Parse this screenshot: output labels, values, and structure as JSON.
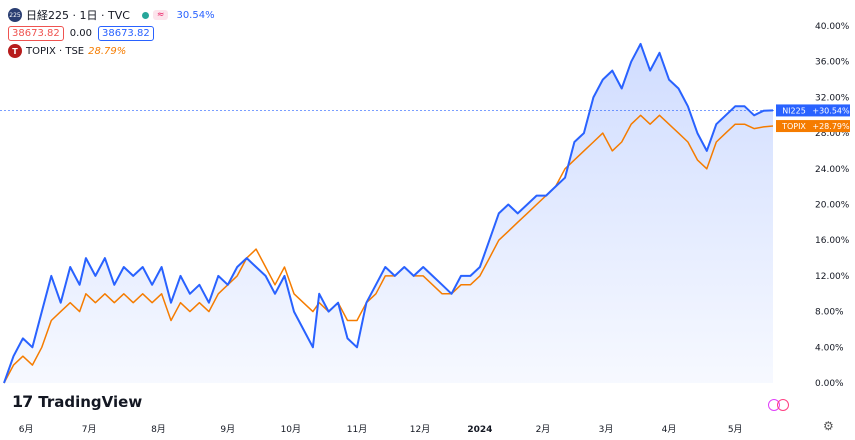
{
  "header": {
    "symbol_badge": "225",
    "symbol_title": "日経225 · 1日 · TVC",
    "wave_badge": "≈",
    "change": "30.54%",
    "price_a": "38673.82",
    "price_mid": "0.00",
    "price_b": "38673.82",
    "topix_badge": "T",
    "topix_name": "TOPIX · TSE",
    "topix_change": "28.79%"
  },
  "logo": {
    "mark": "17",
    "text": "TradingView"
  },
  "icons": {
    "settings": "gear-icon",
    "compare": "circle-icon"
  },
  "chart_data": {
    "type": "line",
    "y_unit": "%",
    "ylim": [
      0,
      40
    ],
    "y_ticks": [
      0,
      4,
      8,
      12,
      16,
      20,
      24,
      28,
      32,
      36,
      40
    ],
    "y_tick_labels": [
      "0.00%",
      "4.00%",
      "8.00%",
      "12.00%",
      "16.00%",
      "20.00%",
      "24.00%",
      "28.00%",
      "32.00%",
      "36.00%",
      "40.00%"
    ],
    "x_ticks": [
      {
        "t": 7,
        "label": "6月"
      },
      {
        "t": 27,
        "label": "7月"
      },
      {
        "t": 49,
        "label": "8月"
      },
      {
        "t": 71,
        "label": "9月"
      },
      {
        "t": 91,
        "label": "10月"
      },
      {
        "t": 112,
        "label": "11月"
      },
      {
        "t": 132,
        "label": "12月"
      },
      {
        "t": 151,
        "label": "2024"
      },
      {
        "t": 171,
        "label": "2月"
      },
      {
        "t": 191,
        "label": "3月"
      },
      {
        "t": 211,
        "label": "4月"
      },
      {
        "t": 232,
        "label": "5月"
      }
    ],
    "x_range": [
      0,
      244
    ],
    "grid": false,
    "series": [
      {
        "name": "NI225",
        "color": "#2962ff",
        "last_label": "+30.54%",
        "points": [
          [
            0,
            0
          ],
          [
            3,
            3
          ],
          [
            6,
            5
          ],
          [
            9,
            4
          ],
          [
            12,
            8
          ],
          [
            15,
            12
          ],
          [
            18,
            9
          ],
          [
            21,
            13
          ],
          [
            24,
            11
          ],
          [
            26,
            14
          ],
          [
            29,
            12
          ],
          [
            32,
            14
          ],
          [
            35,
            11
          ],
          [
            38,
            13
          ],
          [
            41,
            12
          ],
          [
            44,
            13
          ],
          [
            47,
            11
          ],
          [
            50,
            13
          ],
          [
            53,
            9
          ],
          [
            56,
            12
          ],
          [
            59,
            10
          ],
          [
            62,
            11
          ],
          [
            65,
            9
          ],
          [
            68,
            12
          ],
          [
            71,
            11
          ],
          [
            74,
            13
          ],
          [
            77,
            14
          ],
          [
            80,
            13
          ],
          [
            83,
            12
          ],
          [
            86,
            10
          ],
          [
            89,
            12
          ],
          [
            92,
            8
          ],
          [
            95,
            6
          ],
          [
            98,
            4
          ],
          [
            100,
            10
          ],
          [
            103,
            8
          ],
          [
            106,
            9
          ],
          [
            109,
            5
          ],
          [
            112,
            4
          ],
          [
            115,
            9
          ],
          [
            118,
            11
          ],
          [
            121,
            13
          ],
          [
            124,
            12
          ],
          [
            127,
            13
          ],
          [
            130,
            12
          ],
          [
            133,
            13
          ],
          [
            136,
            12
          ],
          [
            139,
            11
          ],
          [
            142,
            10
          ],
          [
            145,
            12
          ],
          [
            148,
            12
          ],
          [
            151,
            13
          ],
          [
            154,
            16
          ],
          [
            157,
            19
          ],
          [
            160,
            20
          ],
          [
            163,
            19
          ],
          [
            166,
            20
          ],
          [
            169,
            21
          ],
          [
            172,
            21
          ],
          [
            175,
            22
          ],
          [
            178,
            23
          ],
          [
            181,
            27
          ],
          [
            184,
            28
          ],
          [
            187,
            32
          ],
          [
            190,
            34
          ],
          [
            193,
            35
          ],
          [
            196,
            33
          ],
          [
            199,
            36
          ],
          [
            202,
            38
          ],
          [
            205,
            35
          ],
          [
            208,
            37
          ],
          [
            211,
            34
          ],
          [
            214,
            33
          ],
          [
            217,
            31
          ],
          [
            220,
            28
          ],
          [
            223,
            26
          ],
          [
            226,
            29
          ],
          [
            229,
            30
          ],
          [
            232,
            31
          ],
          [
            235,
            31
          ],
          [
            238,
            30
          ],
          [
            241,
            30.5
          ],
          [
            244,
            30.54
          ]
        ]
      },
      {
        "name": "TOPIX",
        "color": "#f57c00",
        "last_label": "+28.79%",
        "points": [
          [
            0,
            0
          ],
          [
            3,
            2
          ],
          [
            6,
            3
          ],
          [
            9,
            2
          ],
          [
            12,
            4
          ],
          [
            15,
            7
          ],
          [
            18,
            8
          ],
          [
            21,
            9
          ],
          [
            24,
            8
          ],
          [
            26,
            10
          ],
          [
            29,
            9
          ],
          [
            32,
            10
          ],
          [
            35,
            9
          ],
          [
            38,
            10
          ],
          [
            41,
            9
          ],
          [
            44,
            10
          ],
          [
            47,
            9
          ],
          [
            50,
            10
          ],
          [
            53,
            7
          ],
          [
            56,
            9
          ],
          [
            59,
            8
          ],
          [
            62,
            9
          ],
          [
            65,
            8
          ],
          [
            68,
            10
          ],
          [
            71,
            11
          ],
          [
            74,
            12
          ],
          [
            77,
            14
          ],
          [
            80,
            15
          ],
          [
            83,
            13
          ],
          [
            86,
            11
          ],
          [
            89,
            13
          ],
          [
            92,
            10
          ],
          [
            95,
            9
          ],
          [
            98,
            8
          ],
          [
            100,
            9
          ],
          [
            103,
            8
          ],
          [
            106,
            9
          ],
          [
            109,
            7
          ],
          [
            112,
            7
          ],
          [
            115,
            9
          ],
          [
            118,
            10
          ],
          [
            121,
            12
          ],
          [
            124,
            12
          ],
          [
            127,
            13
          ],
          [
            130,
            12
          ],
          [
            133,
            12
          ],
          [
            136,
            11
          ],
          [
            139,
            10
          ],
          [
            142,
            10
          ],
          [
            145,
            11
          ],
          [
            148,
            11
          ],
          [
            151,
            12
          ],
          [
            154,
            14
          ],
          [
            157,
            16
          ],
          [
            160,
            17
          ],
          [
            163,
            18
          ],
          [
            166,
            19
          ],
          [
            169,
            20
          ],
          [
            172,
            21
          ],
          [
            175,
            22
          ],
          [
            178,
            24
          ],
          [
            181,
            25
          ],
          [
            184,
            26
          ],
          [
            187,
            27
          ],
          [
            190,
            28
          ],
          [
            193,
            26
          ],
          [
            196,
            27
          ],
          [
            199,
            29
          ],
          [
            202,
            30
          ],
          [
            205,
            29
          ],
          [
            208,
            30
          ],
          [
            211,
            29
          ],
          [
            214,
            28
          ],
          [
            217,
            27
          ],
          [
            220,
            25
          ],
          [
            223,
            24
          ],
          [
            226,
            27
          ],
          [
            229,
            28
          ],
          [
            232,
            29
          ],
          [
            235,
            29
          ],
          [
            238,
            28.5
          ],
          [
            241,
            28.7
          ],
          [
            244,
            28.79
          ]
        ]
      }
    ]
  }
}
